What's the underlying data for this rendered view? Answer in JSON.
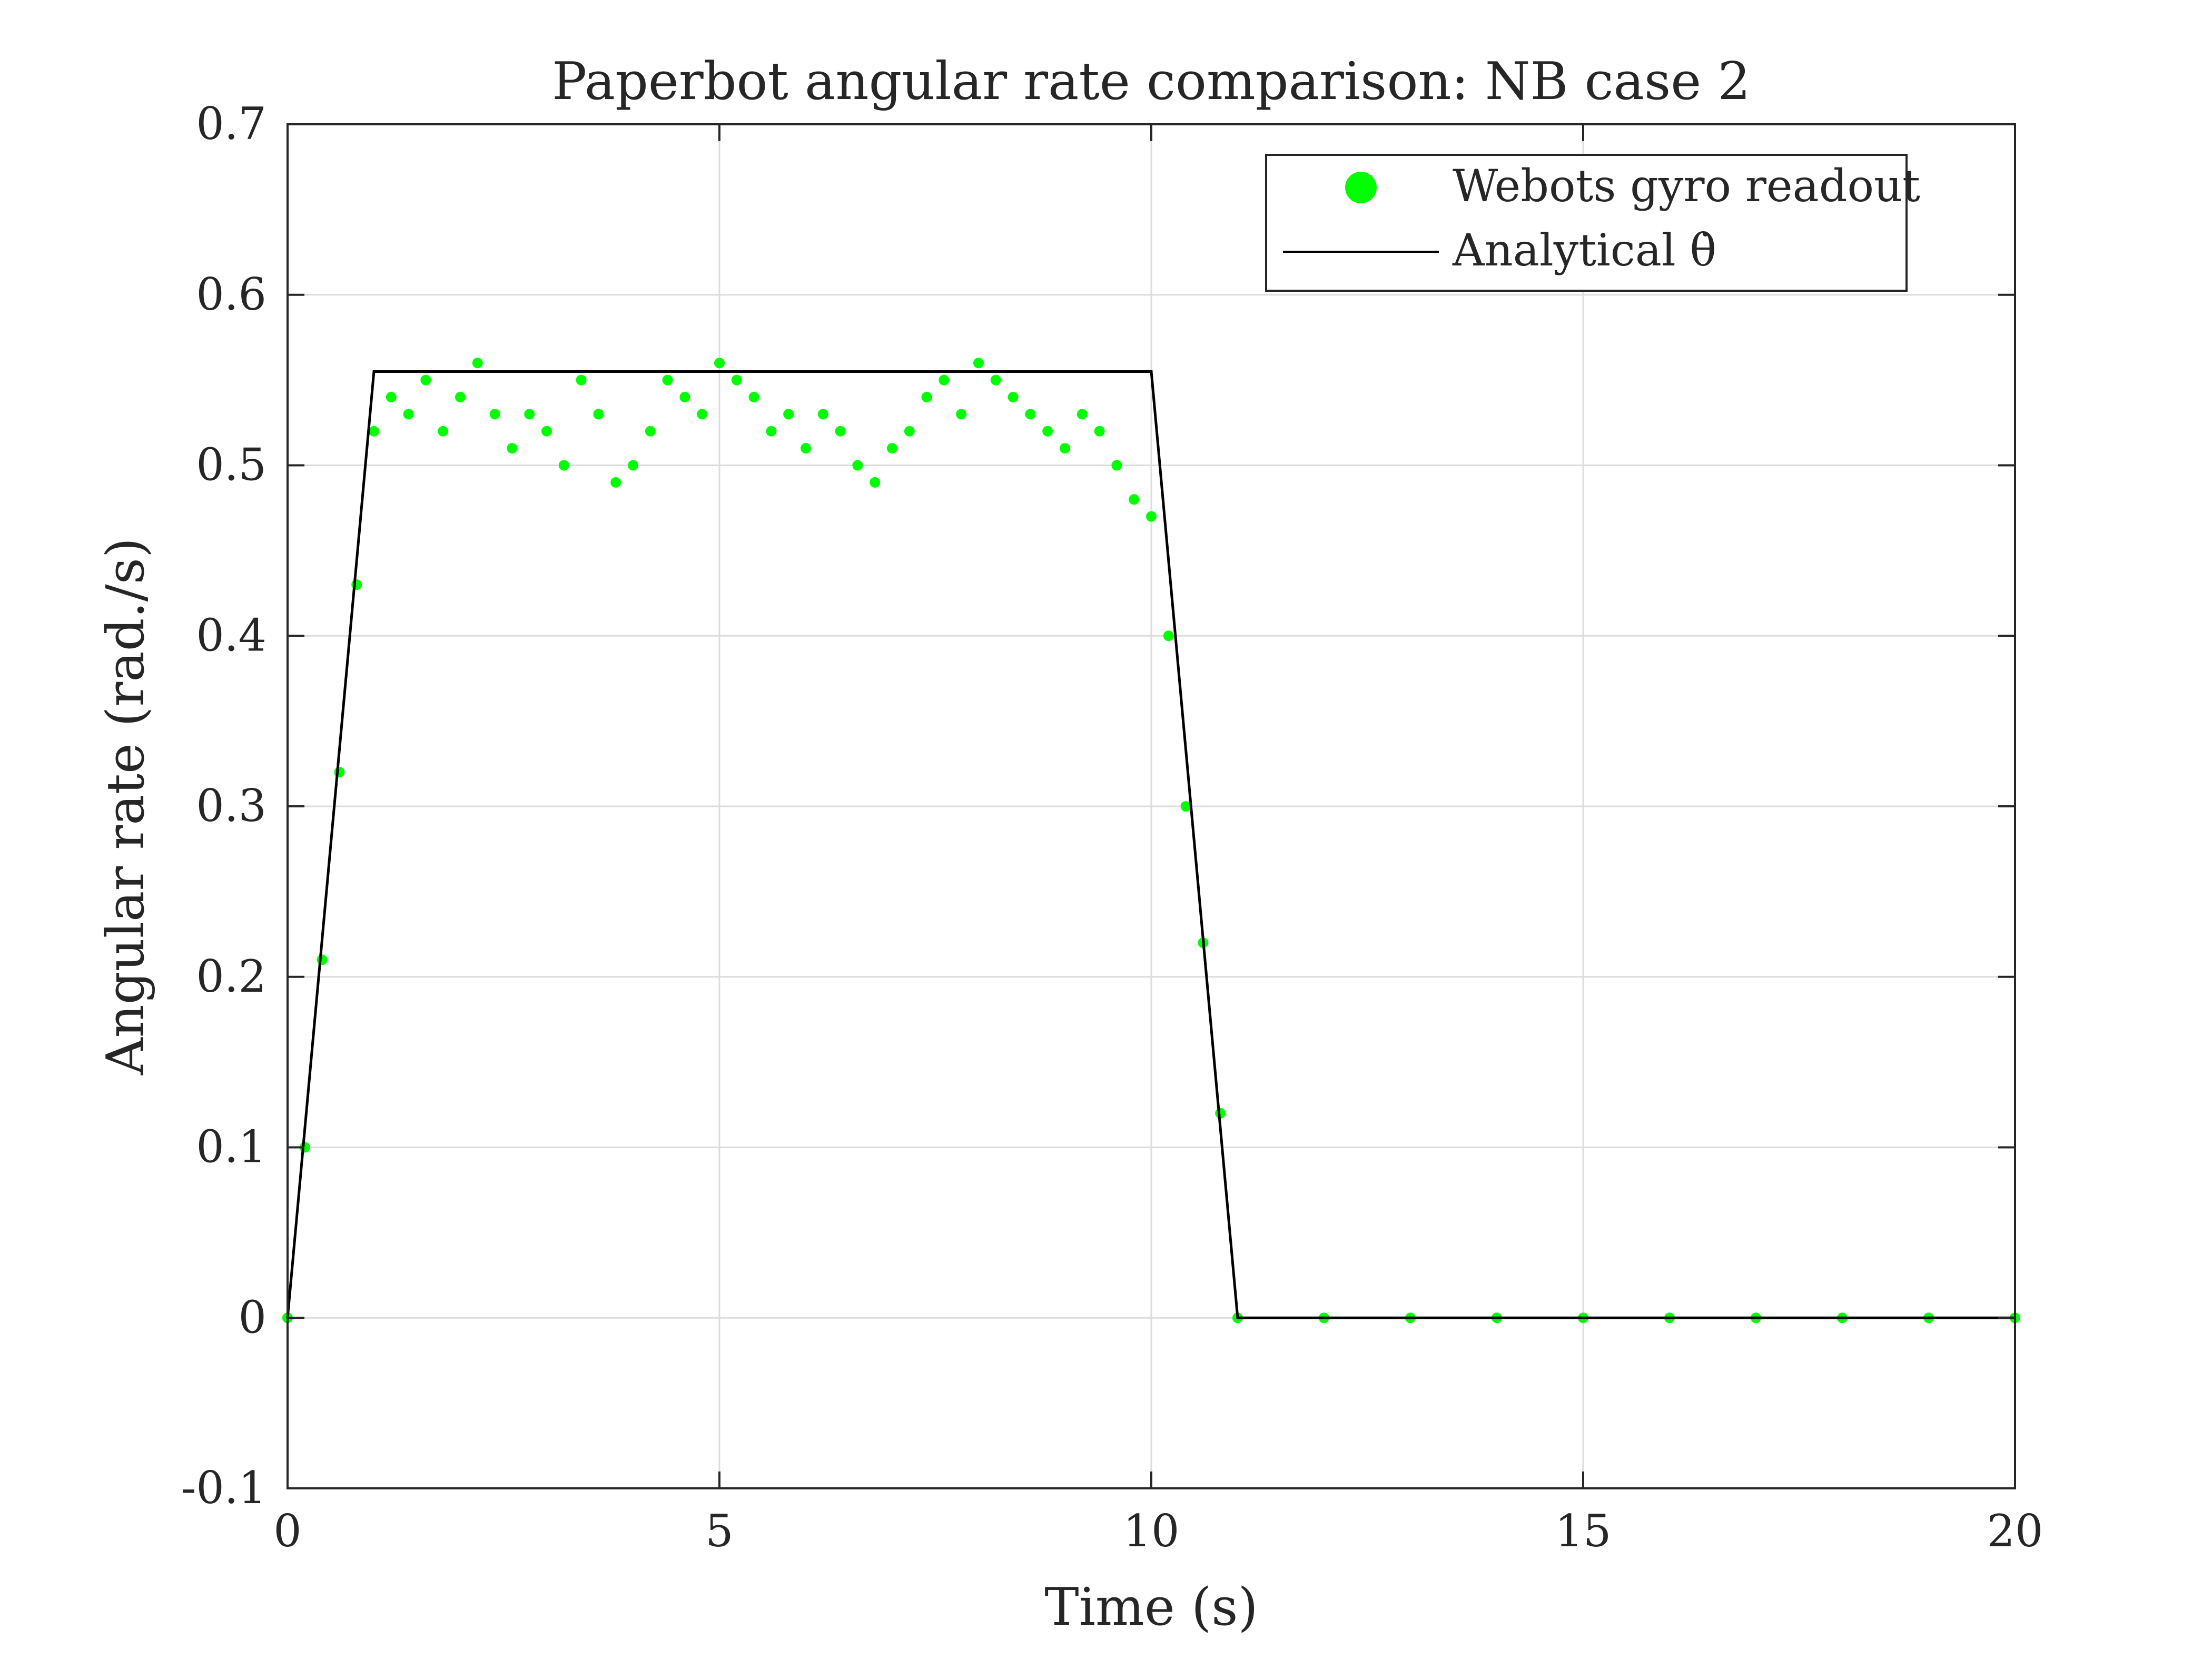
{
  "chart_data": {
    "type": "scatter",
    "title": "Paperbot angular rate comparison: NB case 2",
    "xlabel": "Time (s)",
    "ylabel": "Angular rate (rad./s)",
    "xlim": [
      0,
      20
    ],
    "ylim": [
      -0.1,
      0.7
    ],
    "xticks": [
      0,
      5,
      10,
      15,
      20
    ],
    "yticks": [
      -0.1,
      0,
      0.1,
      0.2,
      0.3,
      0.4,
      0.5,
      0.6,
      0.7
    ],
    "xtick_labels": [
      "0",
      "5",
      "10",
      "15",
      "20"
    ],
    "ytick_labels": [
      "-0.1",
      "0",
      "0.1",
      "0.2",
      "0.3",
      "0.4",
      "0.5",
      "0.6",
      "0.7"
    ],
    "grid": true,
    "legend_position": "top-right",
    "series": [
      {
        "name": "Webots gyro readout",
        "kind": "scatter",
        "color": "#00ff00",
        "x": [
          0.0,
          0.2,
          0.4,
          0.6,
          0.8,
          1.0,
          1.2,
          1.4,
          1.6,
          1.8,
          2.0,
          2.2,
          2.4,
          2.6,
          2.8,
          3.0,
          3.2,
          3.4,
          3.6,
          3.8,
          4.0,
          4.2,
          4.4,
          4.6,
          4.8,
          5.0,
          5.2,
          5.4,
          5.6,
          5.8,
          6.0,
          6.2,
          6.4,
          6.6,
          6.8,
          7.0,
          7.2,
          7.4,
          7.6,
          7.8,
          8.0,
          8.2,
          8.4,
          8.6,
          8.8,
          9.0,
          9.2,
          9.4,
          9.6,
          9.8,
          10.0,
          10.2,
          10.4,
          10.6,
          10.8,
          11.0,
          12.0,
          13.0,
          14.0,
          15.0,
          16.0,
          17.0,
          18.0,
          19.0,
          20.0
        ],
        "y": [
          0.0,
          0.1,
          0.21,
          0.32,
          0.43,
          0.52,
          0.54,
          0.53,
          0.55,
          0.52,
          0.54,
          0.56,
          0.53,
          0.51,
          0.53,
          0.52,
          0.5,
          0.55,
          0.53,
          0.49,
          0.5,
          0.52,
          0.55,
          0.54,
          0.53,
          0.56,
          0.55,
          0.54,
          0.52,
          0.53,
          0.51,
          0.53,
          0.52,
          0.5,
          0.49,
          0.51,
          0.52,
          0.54,
          0.55,
          0.53,
          0.56,
          0.55,
          0.54,
          0.53,
          0.52,
          0.51,
          0.53,
          0.52,
          0.5,
          0.48,
          0.47,
          0.4,
          0.3,
          0.22,
          0.12,
          0.0,
          0.0,
          0.0,
          0.0,
          0.0,
          0.0,
          0.0,
          0.0,
          0.0,
          0.0
        ]
      },
      {
        "name": "Analytical θ̇",
        "kind": "line",
        "color": "#000000",
        "x": [
          0,
          1,
          10,
          11,
          20
        ],
        "y": [
          0,
          0.555,
          0.555,
          0,
          0
        ]
      }
    ]
  }
}
